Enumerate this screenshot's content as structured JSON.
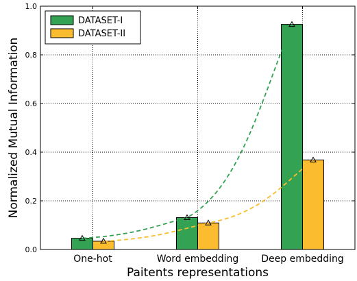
{
  "chart_data": {
    "type": "bar",
    "categories": [
      "One-hot",
      "Word embedding",
      "Deep embedding"
    ],
    "series": [
      {
        "name": "DATASET-I",
        "values": [
          0.046,
          0.131,
          0.925
        ],
        "color": "#33a353"
      },
      {
        "name": "DATASET-II",
        "values": [
          0.034,
          0.109,
          0.368
        ],
        "color": "#fbbd2f"
      }
    ],
    "trend_lines": true,
    "marker": "triangle",
    "title": "",
    "xlabel": "Paitents representations",
    "ylabel": "Normalized Mutual Information",
    "ylim": [
      0,
      1.0
    ],
    "yticks": [
      "0.0",
      "0.2",
      "0.4",
      "0.6",
      "0.8",
      "1.0"
    ],
    "grid": true,
    "legend_position": "top-left"
  }
}
